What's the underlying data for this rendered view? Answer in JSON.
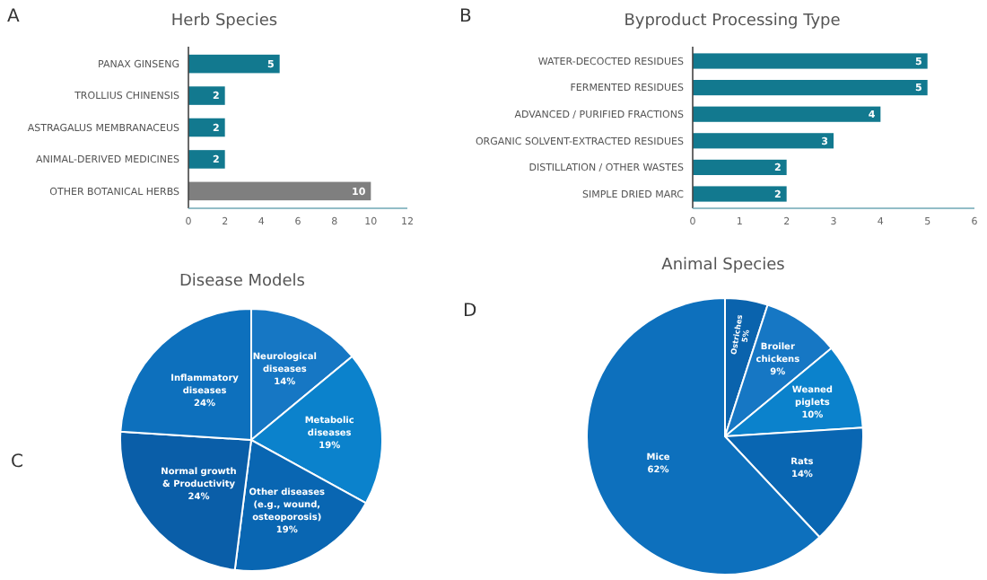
{
  "chart_data": [
    {
      "type": "bar",
      "orientation": "horizontal",
      "title": "Herb Species",
      "annotations": [
        "A"
      ],
      "categories": [
        "PANAX GINSENG",
        "TROLLIUS CHINENSIS",
        "ASTRAGALUS MEMBRANACEUS",
        "ANIMAL-DERIVED MEDICINES",
        "OTHER BOTANICAL HERBS"
      ],
      "values": [
        5,
        2,
        2,
        2,
        10
      ],
      "colors": [
        "#12798f",
        "#12798f",
        "#12798f",
        "#12798f",
        "#7f7f7f"
      ],
      "xlim": [
        0,
        12
      ],
      "xticks": [
        0,
        2,
        4,
        6,
        8,
        10,
        12
      ],
      "data_labels": true,
      "grid": false,
      "legend": false
    },
    {
      "type": "bar",
      "orientation": "horizontal",
      "title": "Byproduct Processing Type",
      "annotations": [
        "B"
      ],
      "categories": [
        "WATER-DECOCTED RESIDUES",
        "FERMENTED RESIDUES",
        "ADVANCED / PURIFIED FRACTIONS",
        "ORGANIC SOLVENT-EXTRACTED RESIDUES",
        "DISTILLATION / OTHER WASTES",
        "SIMPLE DRIED MARC"
      ],
      "values": [
        5,
        5,
        4,
        3,
        2,
        2
      ],
      "colors": [
        "#12798f",
        "#12798f",
        "#12798f",
        "#12798f",
        "#12798f",
        "#12798f"
      ],
      "xlim": [
        0,
        6
      ],
      "xticks": [
        0,
        1,
        2,
        3,
        4,
        5,
        6
      ],
      "data_labels": true,
      "grid": false,
      "legend": false
    },
    {
      "type": "pie",
      "title": "Disease Models",
      "annotations": [
        "C"
      ],
      "categories": [
        "Neurological diseases",
        "Metabolic diseases",
        "Other diseases (e.g., wound, osteoporosis)",
        "Normal growth & Productivity",
        "Inflammatory diseases"
      ],
      "values": [
        14,
        19,
        19,
        24,
        24
      ],
      "value_labels": [
        "14%",
        "19%",
        "19%",
        "24%",
        "24%"
      ],
      "colors": [
        "#1677c4",
        "#0b82cc",
        "#0966b2",
        "#0a5ea8",
        "#0d70bd"
      ],
      "legend": false
    },
    {
      "type": "pie",
      "title": "Animal Species",
      "annotations": [
        "D"
      ],
      "categories": [
        "Ostriches",
        "Broiler chickens",
        "Weaned piglets",
        "Rats",
        "Mice"
      ],
      "values": [
        5,
        9,
        10,
        14,
        62
      ],
      "value_labels": [
        "5%",
        "9%",
        "10%",
        "14%",
        "62%"
      ],
      "colors": [
        "#0a63ad",
        "#1677c4",
        "#0b82cc",
        "#0966b2",
        "#0d70bd"
      ],
      "legend": false
    }
  ]
}
